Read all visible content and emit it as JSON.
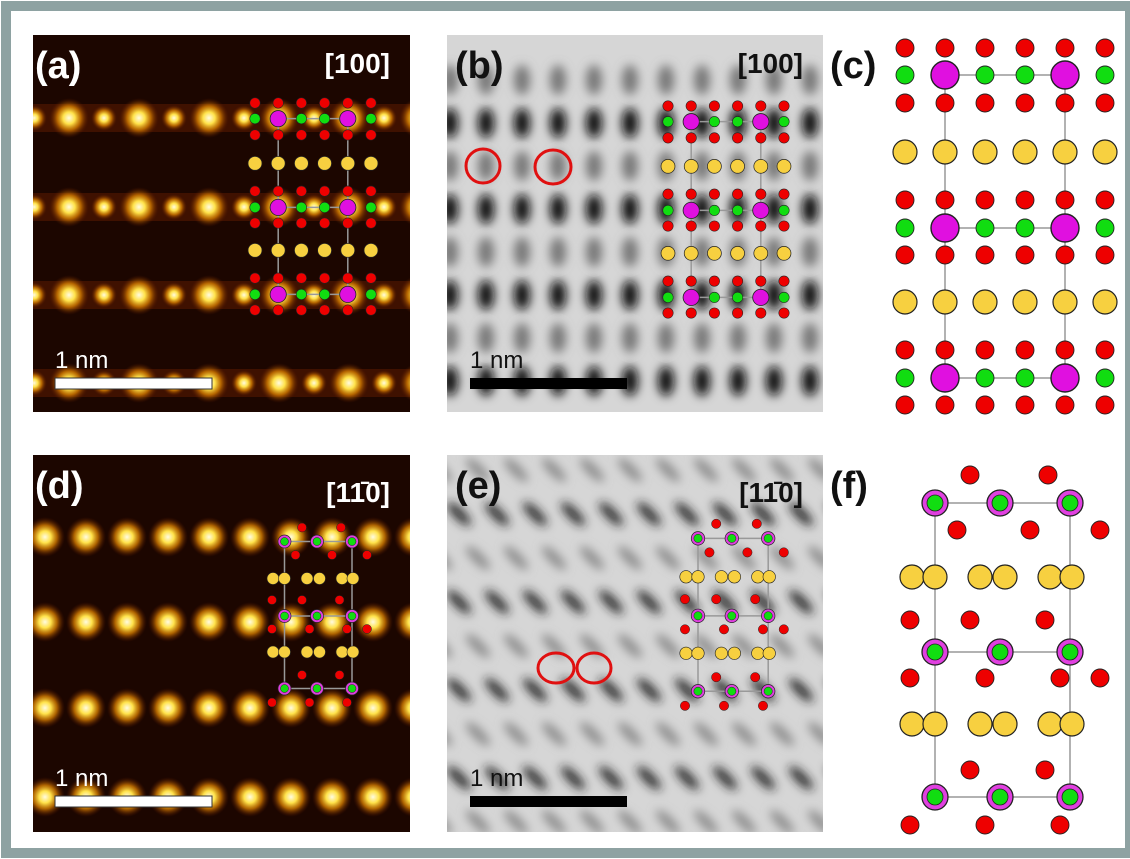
{
  "panels": [
    {
      "label": "(a)",
      "direction": "[100]",
      "scale_bar": "1 nm"
    },
    {
      "label": "(b)",
      "direction": "[100]",
      "scale_bar": "1 nm"
    },
    {
      "label": "(c)"
    },
    {
      "label": "(d)",
      "direction": "[11̄0]",
      "scale_bar": "1 nm"
    },
    {
      "label": "(e)",
      "direction": "[11̄0]",
      "scale_bar": "1 nm"
    },
    {
      "label": "(f)"
    }
  ]
}
